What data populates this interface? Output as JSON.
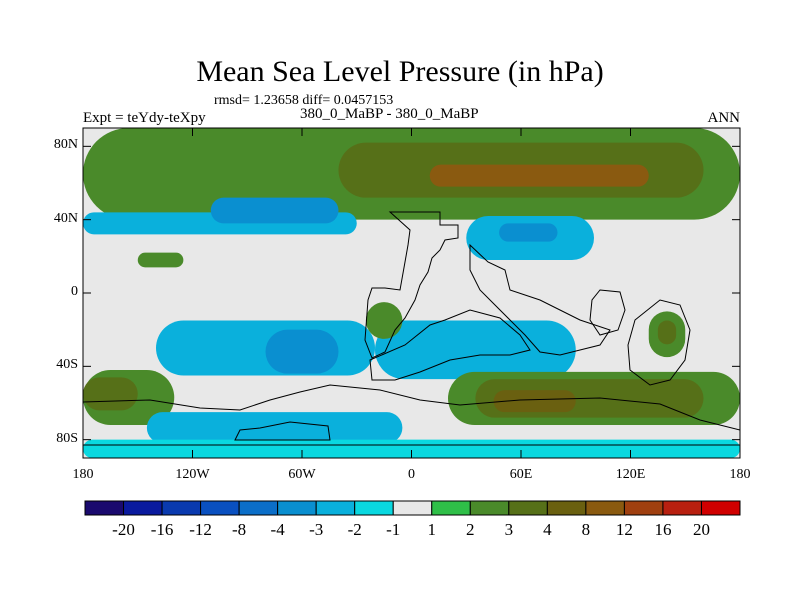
{
  "chart_data": {
    "type": "heatmap",
    "title": "Mean Sea Level Pressure (in hPa)",
    "stats_text": "rmsd= 1.23658 diff= 0.0457153",
    "left_label": "Expt = teYdy-teXpy",
    "center_label": "380_0_MaBP - 380_0_MaBP",
    "right_label": "ANN",
    "xlim": [
      -180,
      180
    ],
    "ylim": [
      -90,
      90
    ],
    "x_ticks": [
      {
        "value": -180,
        "label": "180"
      },
      {
        "value": -120,
        "label": "120W"
      },
      {
        "value": -60,
        "label": "60W"
      },
      {
        "value": 0,
        "label": "0"
      },
      {
        "value": 60,
        "label": "60E"
      },
      {
        "value": 120,
        "label": "120E"
      },
      {
        "value": 180,
        "label": "180"
      }
    ],
    "y_ticks": [
      {
        "value": 80,
        "label": "80N"
      },
      {
        "value": 40,
        "label": "40N"
      },
      {
        "value": 0,
        "label": "0"
      },
      {
        "value": -40,
        "label": "40S"
      },
      {
        "value": -80,
        "label": "80S"
      }
    ],
    "colorbar": {
      "levels": [
        "-20",
        "-16",
        "-12",
        "-8",
        "-4",
        "-3",
        "-2",
        "-1",
        "1",
        "2",
        "3",
        "4",
        "8",
        "12",
        "16",
        "20"
      ],
      "colors": [
        "#1a0a6e",
        "#0a1a9e",
        "#0a3aaf",
        "#0a50c0",
        "#0b6ec8",
        "#0a8fd0",
        "#0ab0dc",
        "#0ad8e0",
        "#e8e8e8",
        "#2fbf48",
        "#4a8a2a",
        "#567018",
        "#6a6010",
        "#8a5a10",
        "#a04010",
        "#b82010",
        "#d00000"
      ]
    },
    "regions": [
      {
        "level": "2",
        "bounds_lonlat": [
          [
            -180,
            90
          ],
          [
            180,
            90
          ],
          [
            180,
            40
          ],
          [
            -180,
            40
          ]
        ]
      },
      {
        "level": "3",
        "bounds_lonlat": [
          [
            -40,
            82
          ],
          [
            160,
            82
          ],
          [
            160,
            52
          ],
          [
            -40,
            52
          ]
        ]
      },
      {
        "level": "8",
        "bounds_lonlat": [
          [
            10,
            70
          ],
          [
            130,
            70
          ],
          [
            130,
            58
          ],
          [
            10,
            58
          ]
        ]
      },
      {
        "level": "-2",
        "bounds_lonlat": [
          [
            -180,
            44
          ],
          [
            -30,
            44
          ],
          [
            -30,
            32
          ],
          [
            -180,
            32
          ]
        ]
      },
      {
        "level": "-3",
        "bounds_lonlat": [
          [
            -110,
            52
          ],
          [
            -40,
            52
          ],
          [
            -40,
            38
          ],
          [
            -110,
            38
          ]
        ]
      },
      {
        "level": "-2",
        "bounds_lonlat": [
          [
            30,
            42
          ],
          [
            100,
            42
          ],
          [
            100,
            18
          ],
          [
            30,
            18
          ]
        ]
      },
      {
        "level": "-3",
        "bounds_lonlat": [
          [
            48,
            38
          ],
          [
            80,
            38
          ],
          [
            80,
            28
          ],
          [
            48,
            28
          ]
        ]
      },
      {
        "level": "2",
        "bounds_lonlat": [
          [
            -150,
            22
          ],
          [
            -125,
            22
          ],
          [
            -125,
            14
          ],
          [
            -150,
            14
          ]
        ]
      },
      {
        "level": "-2",
        "bounds_lonlat": [
          [
            -140,
            -15
          ],
          [
            -20,
            -15
          ],
          [
            -20,
            -45
          ],
          [
            -140,
            -45
          ]
        ]
      },
      {
        "level": "-3",
        "bounds_lonlat": [
          [
            -80,
            -20
          ],
          [
            -40,
            -20
          ],
          [
            -40,
            -44
          ],
          [
            -80,
            -44
          ]
        ]
      },
      {
        "level": "-2",
        "bounds_lonlat": [
          [
            -20,
            -15
          ],
          [
            90,
            -15
          ],
          [
            90,
            -47
          ],
          [
            -20,
            -47
          ]
        ]
      },
      {
        "level": "2",
        "bounds_lonlat": [
          [
            -180,
            -42
          ],
          [
            -130,
            -42
          ],
          [
            -130,
            -72
          ],
          [
            -180,
            -72
          ]
        ]
      },
      {
        "level": "3",
        "bounds_lonlat": [
          [
            -180,
            -46
          ],
          [
            -150,
            -46
          ],
          [
            -150,
            -64
          ],
          [
            -180,
            -64
          ]
        ]
      },
      {
        "level": "2",
        "bounds_lonlat": [
          [
            20,
            -43
          ],
          [
            180,
            -43
          ],
          [
            180,
            -72
          ],
          [
            20,
            -72
          ]
        ]
      },
      {
        "level": "3",
        "bounds_lonlat": [
          [
            35,
            -47
          ],
          [
            160,
            -47
          ],
          [
            160,
            -68
          ],
          [
            35,
            -68
          ]
        ]
      },
      {
        "level": "4",
        "bounds_lonlat": [
          [
            45,
            -53
          ],
          [
            90,
            -53
          ],
          [
            90,
            -65
          ],
          [
            45,
            -65
          ]
        ]
      },
      {
        "level": "2",
        "bounds_lonlat": [
          [
            130,
            -10
          ],
          [
            150,
            -10
          ],
          [
            150,
            -35
          ],
          [
            130,
            -35
          ]
        ]
      },
      {
        "level": "3",
        "bounds_lonlat": [
          [
            135,
            -15
          ],
          [
            145,
            -15
          ],
          [
            145,
            -28
          ],
          [
            135,
            -28
          ]
        ]
      },
      {
        "level": "2",
        "bounds_lonlat": [
          [
            -25,
            -5
          ],
          [
            -5,
            -5
          ],
          [
            -5,
            -25
          ],
          [
            -25,
            -25
          ]
        ]
      },
      {
        "level": "-2",
        "bounds_lonlat": [
          [
            -145,
            -65
          ],
          [
            -5,
            -65
          ],
          [
            -5,
            -82
          ],
          [
            -145,
            -82
          ]
        ]
      },
      {
        "level": "-1",
        "bounds_lonlat": [
          [
            -180,
            -80
          ],
          [
            180,
            -80
          ],
          [
            180,
            -90
          ],
          [
            -180,
            -90
          ]
        ]
      }
    ]
  }
}
